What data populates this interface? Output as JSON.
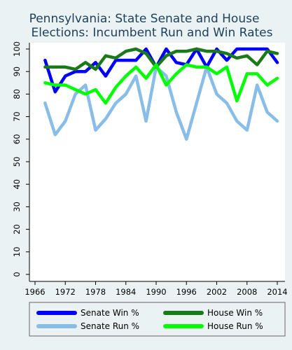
{
  "chart_data": {
    "type": "line",
    "title_lines": [
      "Pennsylvania: State Senate and House",
      "Elections: Incumbent Run and Win Rates"
    ],
    "xlabel": "",
    "ylabel": "",
    "xlim": [
      1966,
      2014
    ],
    "ylim": [
      0,
      100
    ],
    "x_ticks": [
      1966,
      1972,
      1978,
      1984,
      1990,
      1996,
      2002,
      2008,
      2014
    ],
    "y_ticks": [
      0,
      10,
      20,
      30,
      40,
      50,
      60,
      70,
      80,
      90,
      100
    ],
    "grid": false,
    "legend_position": "bottom",
    "series": [
      {
        "name": "Senate Win %",
        "color": "#0000ff",
        "x": [
          1968,
          1970,
          1972,
          1974,
          1976,
          1978,
          1980,
          1982,
          1984,
          1986,
          1988,
          1990,
          1992,
          1994,
          1996,
          1998,
          2000,
          2002,
          2004,
          2006,
          2008,
          2010,
          2012,
          2014
        ],
        "values": [
          95,
          81,
          88,
          90,
          90,
          94,
          88,
          95,
          95,
          95,
          100,
          92,
          100,
          94,
          93,
          100,
          92,
          100,
          95,
          100,
          100,
          100,
          100,
          94
        ]
      },
      {
        "name": "Senate Run %",
        "color": "#87bde6",
        "x": [
          1968,
          1970,
          1972,
          1974,
          1976,
          1978,
          1980,
          1982,
          1984,
          1986,
          1988,
          1990,
          1992,
          1994,
          1996,
          1998,
          2000,
          2002,
          2004,
          2006,
          2008,
          2010,
          2012,
          2014
        ],
        "values": [
          76,
          62,
          68,
          80,
          84,
          64,
          69,
          76,
          80,
          88,
          68,
          92,
          88,
          72,
          60,
          76,
          92,
          80,
          76,
          68,
          64,
          84,
          72,
          68
        ]
      },
      {
        "name": "House Win %",
        "color": "#1a7a1a",
        "x": [
          1968,
          1970,
          1972,
          1974,
          1976,
          1978,
          1980,
          1982,
          1984,
          1986,
          1988,
          1990,
          1992,
          1994,
          1996,
          1998,
          2000,
          2002,
          2004,
          2006,
          2008,
          2010,
          2012,
          2014
        ],
        "values": [
          92,
          92,
          92,
          91,
          94,
          91,
          97,
          96,
          99,
          100,
          98,
          92,
          97,
          99,
          99,
          100,
          99,
          99,
          98,
          96,
          97,
          93,
          99,
          98
        ]
      },
      {
        "name": "House Run %",
        "color": "#00ff00",
        "x": [
          1968,
          1970,
          1972,
          1974,
          1976,
          1978,
          1980,
          1982,
          1984,
          1986,
          1988,
          1990,
          1992,
          1994,
          1996,
          1998,
          2000,
          2002,
          2004,
          2006,
          2008,
          2010,
          2012,
          2014
        ],
        "values": [
          85,
          84,
          84,
          82,
          80,
          82,
          76,
          83,
          88,
          92,
          87,
          93,
          84,
          89,
          93,
          92,
          92,
          89,
          92,
          77,
          89,
          89,
          84,
          87
        ]
      }
    ]
  }
}
